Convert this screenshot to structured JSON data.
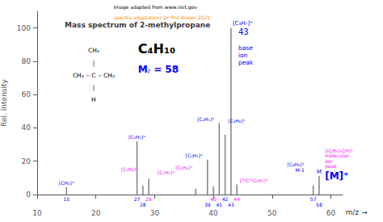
{
  "chart_data": {
    "type": "bar",
    "title": "Mass spectrum of 2-methylpropane",
    "xlabel": "m/z →",
    "ylabel": "Rel. Intensity",
    "x": [
      15,
      27,
      28,
      29,
      37,
      39,
      40,
      41,
      42,
      43,
      44,
      57,
      58
    ],
    "values": [
      4.5,
      32,
      5.5,
      9.5,
      3.5,
      21,
      5,
      43,
      36,
      100,
      6,
      5.5,
      11
    ],
    "color": "gray",
    "xlim": [
      10,
      62
    ],
    "ylim": [
      0,
      110
    ],
    "xticks": [
      10,
      20,
      30,
      40,
      50,
      60
    ],
    "yticks": [
      0,
      20,
      40,
      60,
      80,
      100
    ],
    "grid": false,
    "annotations": [
      {
        "text": "Image adapted from www.nist.gov",
        "color": "black"
      },
      {
        "text": "spectra adaptations Dr Phil Brown 2021",
        "color": "darkorange"
      },
      {
        "text": "CH₃",
        "color": "black"
      },
      {
        "text": "|",
        "color": "black"
      },
      {
        "text": "CH₃ ‒ C ‒ CH₃",
        "color": "black"
      },
      {
        "text": "|",
        "color": "black"
      },
      {
        "text": "H",
        "color": "black"
      },
      {
        "text": "C₄H₁₀",
        "color": "black"
      },
      {
        "text": "Mr = 58",
        "color": "blue"
      },
      {
        "text": "[CH₃]⁺",
        "color": "blue"
      },
      {
        "text": "[C₂H₃]⁺",
        "color": "blue"
      },
      {
        "text": "[C₂H₄]⁺",
        "color": "magenta"
      },
      {
        "text": "[C₂H₅]⁺",
        "color": "magenta"
      },
      {
        "text": "[C₃H₄]⁺",
        "color": "magenta"
      },
      {
        "text": "[C₃H₃]⁺",
        "color": "blue"
      },
      {
        "text": "[C₃H₅]⁺",
        "color": "blue"
      },
      {
        "text": "[C₃H₆]⁺",
        "color": "blue"
      },
      {
        "text": "[C₃H₇]⁺",
        "color": "blue"
      },
      {
        "text": "43",
        "color": "blue"
      },
      {
        "text": "base\nion\npeak",
        "color": "blue"
      },
      {
        "text": "[¹³C¹²C₂H₇]⁺",
        "color": "magenta"
      },
      {
        "text": "[(CH₃)₃CH]⁺\nmolecular\nion\npeak",
        "color": "magenta"
      },
      {
        "text": "[M]⁺",
        "color": "blue"
      },
      {
        "text": "[C₄H₉]⁺\nM-1",
        "color": "blue"
      },
      {
        "text": "M",
        "color": "blue"
      },
      {
        "text": "15",
        "x": 15,
        "color": "blue"
      },
      {
        "text": "27",
        "x": 27,
        "color": "blue"
      },
      {
        "text": "28",
        "x": 28,
        "color": "blue"
      },
      {
        "text": "29",
        "x": 29,
        "color": "magenta"
      },
      {
        "text": "40",
        "x": 40,
        "color": "magenta"
      },
      {
        "text": "39",
        "x": 39,
        "color": "blue"
      },
      {
        "text": "41",
        "x": 41,
        "color": "blue"
      },
      {
        "text": "42",
        "x": 42,
        "color": "blue"
      },
      {
        "text": "43",
        "x": 43,
        "color": "blue"
      },
      {
        "text": "44",
        "x": 44,
        "color": "magenta"
      },
      {
        "text": "57",
        "x": 57,
        "color": "blue"
      },
      {
        "text": "58",
        "x": 58,
        "color": "blue"
      }
    ]
  }
}
